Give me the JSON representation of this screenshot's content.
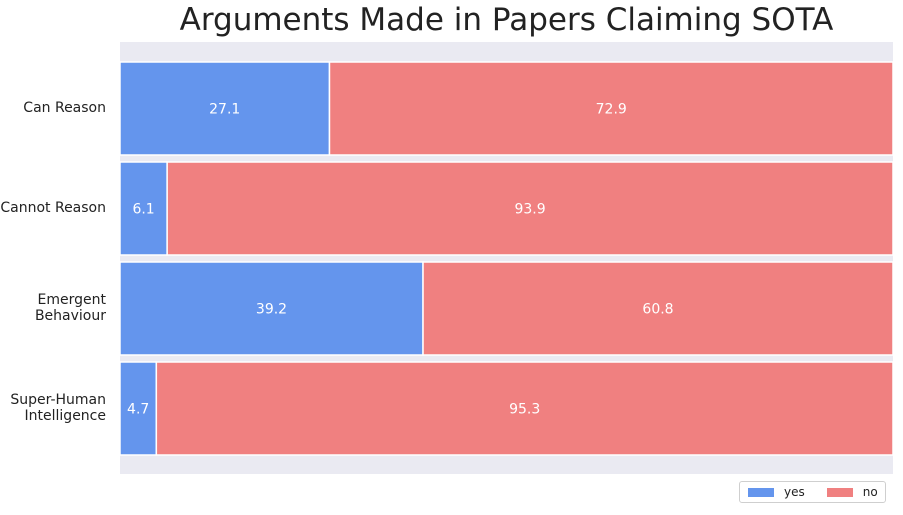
{
  "chart_data": {
    "type": "bar",
    "orientation": "horizontal",
    "stacked": true,
    "title": "Arguments Made in Papers Claiming SOTA",
    "categories": [
      "Can Reason",
      "Cannot Reason",
      "Emergent\nBehaviour",
      "Super-Human\nIntelligence"
    ],
    "series": [
      {
        "name": "yes",
        "values": [
          27.1,
          6.1,
          39.2,
          4.7
        ],
        "color": "#6495ed"
      },
      {
        "name": "no",
        "values": [
          72.9,
          93.9,
          60.8,
          95.3
        ],
        "color": "#f08080"
      }
    ],
    "xlim": [
      0,
      100
    ],
    "grid": false,
    "legend_position": "bottom-right",
    "background_color": "#eaeaf2",
    "label_color": "#ffffff"
  }
}
